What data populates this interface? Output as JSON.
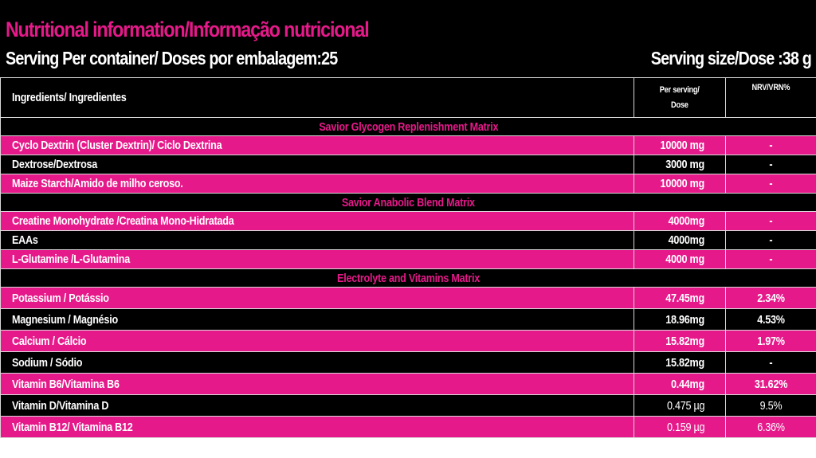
{
  "header": {
    "title": "Nutritional information/Informação nutricional",
    "servings_per_container": "Serving Per container/ Doses por embalagem:25",
    "serving_size": "Serving size/Dose :38 g"
  },
  "columns": {
    "ingredients": "Ingredients/ Ingredientes",
    "per_serving_line1": "Per serving/",
    "per_serving_line2": "Dose",
    "nrv": "NRV/VRN%"
  },
  "colors": {
    "accent": "#e6198a",
    "background": "#000000",
    "text": "#ffffff"
  },
  "sections": [
    {
      "title": "Savior Glycogen Replenishment Matrix",
      "rows": [
        {
          "name": "Cyclo Dextrin (Cluster Dextrin)/ Ciclo Dextrina",
          "amount": "10000 mg",
          "nrv": "-"
        },
        {
          "name": "Dextrose/Dextrosa",
          "amount": "3000 mg",
          "nrv": "-"
        },
        {
          "name": "Maize Starch/Amido de milho ceroso.",
          "amount": "10000 mg",
          "nrv": "-"
        }
      ]
    },
    {
      "title": "Savior Anabolic Blend Matrix",
      "rows": [
        {
          "name": "Creatine Monohydrate /Creatina Mono-Hidratada",
          "amount": "4000mg",
          "nrv": "-"
        },
        {
          "name": "EAAs",
          "amount": "4000mg",
          "nrv": "-"
        },
        {
          "name": "L-Glutamine /L-Glutamina",
          "amount": "4000 mg",
          "nrv": "-"
        }
      ]
    },
    {
      "title": "Electrolyte and Vitamins Matrix",
      "rows": [
        {
          "name": "Potassium / Potássio",
          "amount": "47.45mg",
          "nrv": "2.34%"
        },
        {
          "name": "Magnesium / Magnésio",
          "amount": "18.96mg",
          "nrv": "4.53%"
        },
        {
          "name": "Calcium / Cálcio",
          "amount": "15.82mg",
          "nrv": "1.97%"
        },
        {
          "name": "Sodium / Sódio",
          "amount": "15.82mg",
          "nrv": "-"
        },
        {
          "name": "Vitamin B6/Vitamina B6",
          "amount": "0.44mg",
          "nrv": "31.62%"
        },
        {
          "name": "Vitamin D/Vitamina D",
          "amount": "0.475 µg",
          "nrv": "9.5%"
        },
        {
          "name": "Vitamin B12/ Vitamina B12",
          "amount": "0.159 µg",
          "nrv": "6.36%"
        }
      ]
    }
  ]
}
